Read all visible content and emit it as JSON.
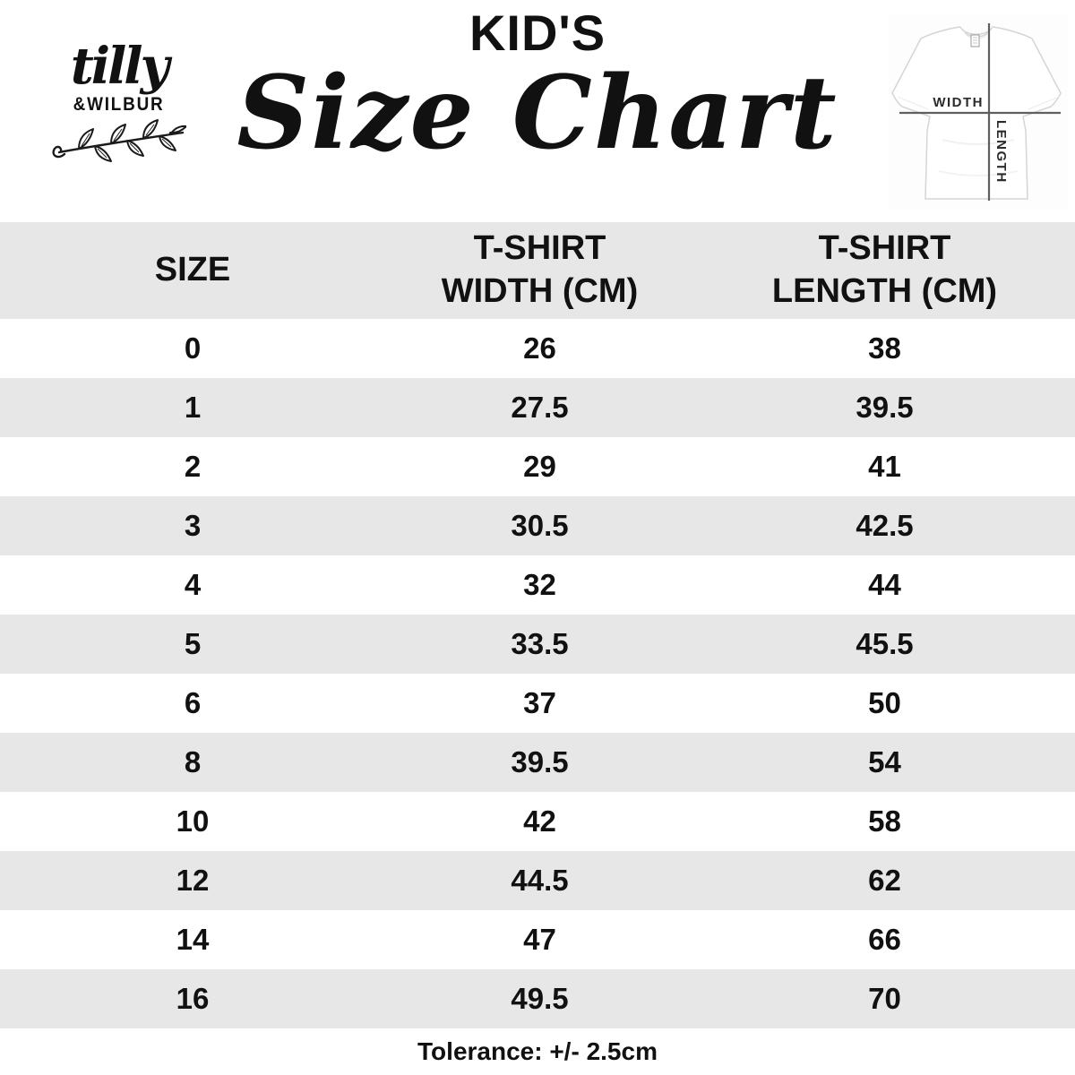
{
  "brand": {
    "script_name": "tilly",
    "caps_name": "&WILBUR",
    "branch_icon": "laurel-branch-icon"
  },
  "header": {
    "kicker": "KID'S",
    "title": "Size Chart"
  },
  "shirt_diagram": {
    "icon": "tshirt-measurement-diagram",
    "width_label": "WIDTH",
    "length_label": "LENGTH"
  },
  "chart_data": {
    "type": "table",
    "title": "KID'S Size Chart",
    "columns": [
      "SIZE",
      "T-SHIRT WIDTH (CM)",
      "T-SHIRT LENGTH (CM)"
    ],
    "columns_display": [
      "SIZE",
      "T-SHIRT\nWIDTH (CM)",
      "T-SHIRT\nLENGTH (CM)"
    ],
    "rows": [
      [
        "0",
        "26",
        "38"
      ],
      [
        "1",
        "27.5",
        "39.5"
      ],
      [
        "2",
        "29",
        "41"
      ],
      [
        "3",
        "30.5",
        "42.5"
      ],
      [
        "4",
        "32",
        "44"
      ],
      [
        "5",
        "33.5",
        "45.5"
      ],
      [
        "6",
        "37",
        "50"
      ],
      [
        "8",
        "39.5",
        "54"
      ],
      [
        "10",
        "42",
        "58"
      ],
      [
        "12",
        "44.5",
        "62"
      ],
      [
        "14",
        "47",
        "66"
      ],
      [
        "16",
        "49.5",
        "70"
      ]
    ],
    "footnote": "Tolerance: +/- 2.5cm",
    "layout": {
      "stripe_pattern": "alternating",
      "first_data_row": "white"
    }
  },
  "footer": {
    "tolerance": "Tolerance: +/- 2.5cm"
  },
  "colors": {
    "stripe": "#e7e7e7",
    "text": "#111111",
    "measure-line": "#5f5f5f"
  }
}
